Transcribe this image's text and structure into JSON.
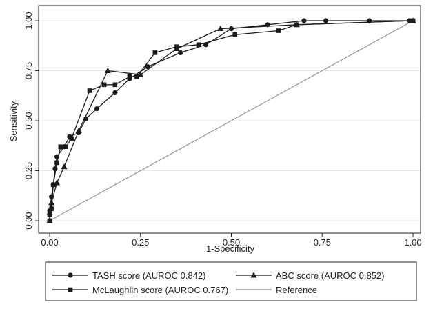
{
  "chart_data": {
    "type": "line",
    "title": "",
    "xlabel": "1-Specificity",
    "ylabel": "Sensitivity",
    "xlim": [
      0,
      1
    ],
    "ylim": [
      0,
      1
    ],
    "x_ticks": [
      "0.00",
      "0.25",
      "0.50",
      "0.75",
      "1.00"
    ],
    "y_ticks": [
      "0.00",
      "0.25",
      "0.50",
      "0.75",
      "1.00"
    ],
    "grid": true,
    "legend_position": "bottom",
    "series": [
      {
        "name": "TASH score (AUROC 0.842)",
        "marker": "circle",
        "color": "#1a1a1a",
        "x": [
          0.0,
          0.0,
          0.005,
          0.01,
          0.015,
          0.02,
          0.04,
          0.055,
          0.08,
          0.1,
          0.13,
          0.18,
          0.22,
          0.27,
          0.36,
          0.43,
          0.5,
          0.6,
          0.7,
          0.76,
          0.88,
          0.99,
          1.0
        ],
        "y": [
          0.0,
          0.05,
          0.12,
          0.18,
          0.26,
          0.32,
          0.37,
          0.42,
          0.44,
          0.51,
          0.56,
          0.64,
          0.71,
          0.77,
          0.84,
          0.88,
          0.96,
          0.98,
          1.0,
          1.0,
          1.0,
          1.0,
          1.0
        ]
      },
      {
        "name": "ABC score (AUROC 0.852)",
        "marker": "triangle",
        "color": "#1a1a1a",
        "x": [
          0.0,
          0.0,
          0.005,
          0.02,
          0.04,
          0.08,
          0.16,
          0.25,
          0.35,
          0.47,
          0.68,
          1.0
        ],
        "y": [
          0.0,
          0.04,
          0.09,
          0.19,
          0.27,
          0.45,
          0.75,
          0.73,
          0.86,
          0.96,
          0.98,
          1.0
        ]
      },
      {
        "name": "McLaughlin score (AUROC 0.767)",
        "marker": "square",
        "color": "#1a1a1a",
        "x": [
          0.0,
          0.0,
          0.005,
          0.01,
          0.02,
          0.03,
          0.045,
          0.06,
          0.11,
          0.15,
          0.18,
          0.22,
          0.24,
          0.29,
          0.35,
          0.41,
          0.51,
          0.63,
          0.68,
          1.0
        ],
        "y": [
          0.0,
          0.03,
          0.06,
          0.18,
          0.29,
          0.37,
          0.37,
          0.41,
          0.65,
          0.68,
          0.68,
          0.72,
          0.72,
          0.84,
          0.87,
          0.88,
          0.93,
          0.95,
          0.98,
          1.0
        ]
      },
      {
        "name": "Reference",
        "marker": "none",
        "color": "#8c8c8c",
        "x": [
          0.0,
          1.0
        ],
        "y": [
          0.0,
          1.0
        ]
      }
    ]
  }
}
